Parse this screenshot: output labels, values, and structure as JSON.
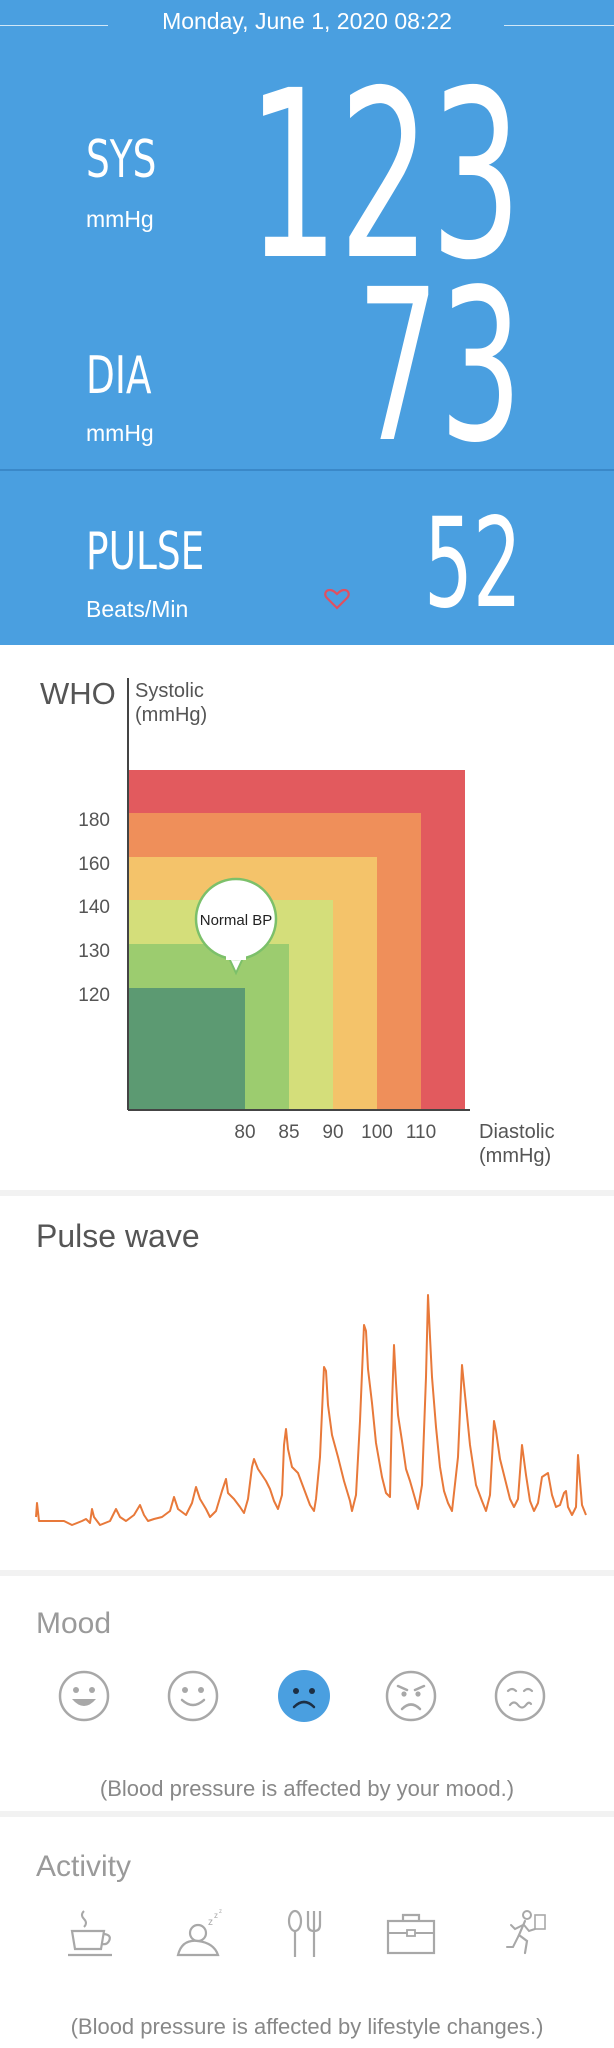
{
  "header": {
    "datetime": "Monday, June 1, 2020 08:22",
    "sys": {
      "label": "SYS",
      "unit": "mmHg",
      "value": "123"
    },
    "dia": {
      "label": "DIA",
      "unit": "mmHg",
      "value": "73"
    },
    "pulse": {
      "label": "PULSE",
      "unit": "Beats/Min",
      "value": "52"
    },
    "accent_color": "#4a9fe0"
  },
  "who_chart": {
    "title": "WHO",
    "y_label": [
      "Systolic",
      "(mmHg)"
    ],
    "x_label": [
      "Diastolic",
      "(mmHg)"
    ],
    "y_ticks": [
      "180",
      "160",
      "140",
      "130",
      "120"
    ],
    "x_ticks": [
      "80",
      "85",
      "90",
      "100",
      "110"
    ],
    "marker_label": "Normal BP",
    "zone_colors": [
      "#5c9a72",
      "#9ccc6f",
      "#d4de7a",
      "#f4c36a",
      "#ef8f5a",
      "#e25a5e"
    ]
  },
  "pulse_wave": {
    "title": "Pulse wave",
    "color": "#e8793a"
  },
  "mood": {
    "title": "Mood",
    "icons": [
      "very-happy-icon",
      "happy-icon",
      "sad-icon",
      "angry-icon",
      "sick-icon"
    ],
    "selected": "sad-icon",
    "note": "(Blood pressure is affected by your mood.)"
  },
  "activity": {
    "title": "Activity",
    "icons": [
      "coffee-cup-icon",
      "sleep-icon",
      "dining-icon",
      "briefcase-icon",
      "running-icon"
    ],
    "note": "(Blood pressure is affected by lifestyle changes.)"
  }
}
